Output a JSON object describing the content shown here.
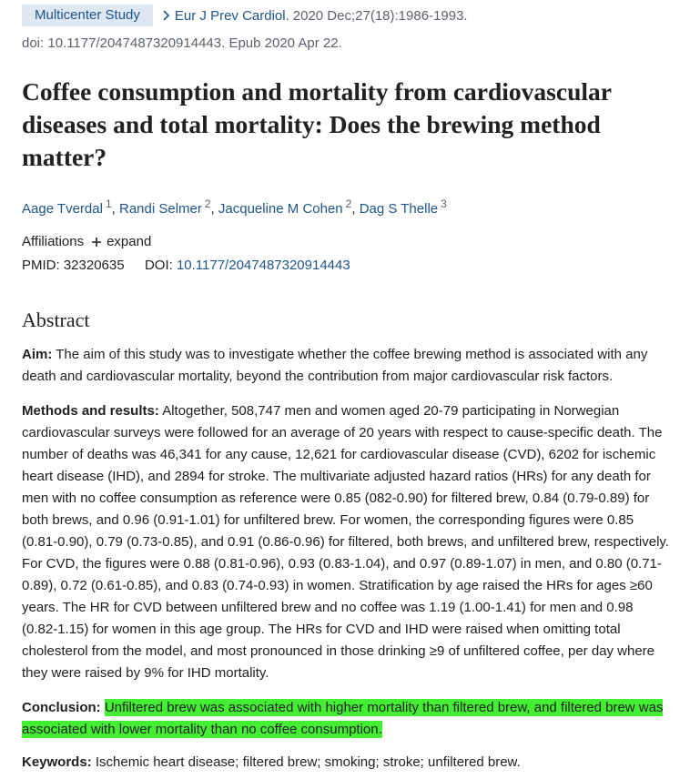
{
  "header": {
    "publication_type": "Multicenter Study",
    "journal": "Eur J Prev Cardiol.",
    "citation": "2020 Dec;27(18):1986-1993.",
    "doi_line": "doi: 10.1177/2047487320914443. Epub 2020 Apr 22."
  },
  "title": "Coffee consumption and mortality from cardiovascular diseases and total mortality: Does the brewing method matter?",
  "authors": [
    {
      "name": "Aage Tverdal",
      "affiliation": "1",
      "separator": ","
    },
    {
      "name": "Randi Selmer",
      "affiliation": "2",
      "separator": ","
    },
    {
      "name": "Jacqueline M Cohen",
      "affiliation": "2",
      "separator": ","
    },
    {
      "name": "Dag S Thelle",
      "affiliation": "3"
    }
  ],
  "affiliations": {
    "label": "Affiliations",
    "toggle": "expand"
  },
  "identifiers": {
    "pmid_label": "PMID:",
    "pmid": "32320635",
    "doi_label": "DOI:",
    "doi": "10.1177/2047487320914443"
  },
  "abstract": {
    "heading": "Abstract",
    "sections": [
      {
        "label": "Aim:",
        "text": "The aim of this study was to investigate whether the coffee brewing method is associated with any death and cardiovascular mortality, beyond the contribution from major cardiovascular risk factors."
      },
      {
        "label": "Methods and results:",
        "text": "Altogether, 508,747 men and women aged 20-79 participating in Norwegian cardiovascular surveys were followed for an average of 20 years with respect to cause-specific death. The number of deaths was 46,341 for any cause, 12,621 for cardiovascular disease (CVD), 6202 for ischemic heart disease (IHD), and 2894 for stroke. The multivariate adjusted hazard ratios (HRs) for any death for men with no coffee consumption as reference were 0.85 (082-0.90) for filtered brew, 0.84 (0.79-0.89) for both brews, and 0.96 (0.91-1.01) for unfiltered brew. For women, the corresponding figures were 0.85 (0.81-0.90), 0.79 (0.73-0.85), and 0.91 (0.86-0.96) for filtered, both brews, and unfiltered brew, respectively. For CVD, the figures were 0.88 (0.81-0.96), 0.93 (0.83-1.04), and 0.97 (0.89-1.07) in men, and 0.80 (0.71-0.89), 0.72 (0.61-0.85), and 0.83 (0.74-0.93) in women. Stratification by age raised the HRs for ages ≥60 years. The HR for CVD between unfiltered brew and no coffee was 1.19 (1.00-1.41) for men and 0.98 (0.82-1.15) for women in this age group. The HRs for CVD and IHD were raised when omitting total cholesterol from the model, and most pronounced in those drinking ≥9 of unfiltered coffee, per day where they were raised by 9% for IHD mortality."
      },
      {
        "label": "Conclusion:",
        "text": "Unfiltered brew was associated with higher mortality than filtered brew, and filtered brew was associated with lower mortality than no coffee consumption.",
        "highlighted": true
      }
    ],
    "keywords_label": "Keywords:",
    "keywords": "Ischemic heart disease; filtered brew; smoking; stroke; unfiltered brew."
  }
}
